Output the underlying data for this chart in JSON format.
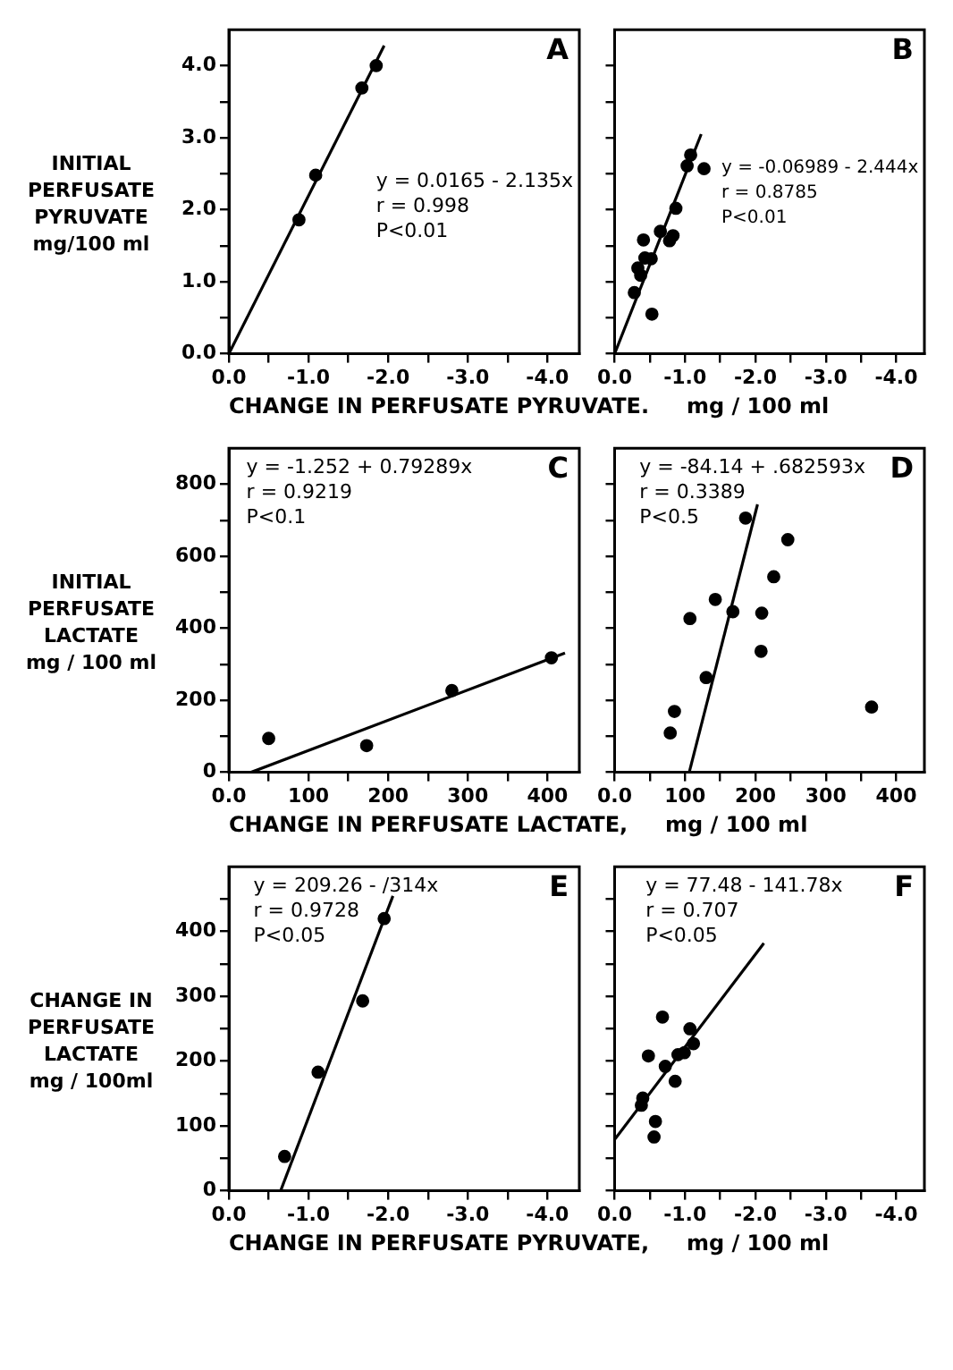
{
  "chart_data": [
    {
      "type": "scatter",
      "ylabel": "INITIAL\nPERFUSATE\nPYRUVATE\nmg/100 ml",
      "xlabel": "CHANGE IN PERFUSATE PYRUVATE.     mg / 100 ml",
      "xlim": [
        0,
        -4.4
      ],
      "ylim": [
        0,
        4.5
      ],
      "xticks": [
        {
          "value": 0,
          "label": "0.0"
        },
        {
          "value": -0.5,
          "label": null
        },
        {
          "value": -1,
          "label": "-1.0"
        },
        {
          "value": -1.5,
          "label": null
        },
        {
          "value": -2,
          "label": "-2.0"
        },
        {
          "value": -2.5,
          "label": null
        },
        {
          "value": -3,
          "label": "-3.0"
        },
        {
          "value": -3.5,
          "label": null
        },
        {
          "value": -4,
          "label": "-4.0"
        }
      ],
      "yticks": [
        {
          "value": 0,
          "label": "0.0"
        },
        {
          "value": 0.5,
          "label": null
        },
        {
          "value": 1,
          "label": "1.0"
        },
        {
          "value": 1.5,
          "label": null
        },
        {
          "value": 2,
          "label": "2.0"
        },
        {
          "value": 2.5,
          "label": null
        },
        {
          "value": 3,
          "label": "3.0"
        },
        {
          "value": 3.5,
          "label": null
        },
        {
          "value": 4,
          "label": "4.0"
        }
      ],
      "marker": "circle",
      "grid": false,
      "legend": false,
      "annotations": [
        "A",
        "y = 0.0165 - 2.135x",
        "r = 0.998",
        "P<0.01"
      ],
      "series": [
        {
          "type": "scatter",
          "color": "#000000",
          "x": [
            -0.88,
            -1.09,
            -1.67,
            -1.85
          ],
          "values": [
            1.86,
            2.48,
            3.69,
            4.0
          ]
        },
        {
          "type": "line",
          "color": "#000000",
          "marker": "none",
          "line_style": "solid",
          "x": [
            0,
            -1.95
          ],
          "values": [
            0,
            4.28
          ]
        }
      ]
    },
    {
      "type": "scatter",
      "tick_labels": "x",
      "xlim": [
        0,
        -4.4
      ],
      "ylim": [
        0,
        4.5
      ],
      "xticks": [
        {
          "value": 0,
          "label": "0.0"
        },
        {
          "value": -0.5,
          "label": null
        },
        {
          "value": -1,
          "label": "-1.0"
        },
        {
          "value": -1.5,
          "label": null
        },
        {
          "value": -2,
          "label": "-2.0"
        },
        {
          "value": -2.5,
          "label": null
        },
        {
          "value": -3,
          "label": "-3.0"
        },
        {
          "value": -3.5,
          "label": null
        },
        {
          "value": -4,
          "label": "-4.0"
        }
      ],
      "yticks": [
        {
          "value": 0,
          "label": null
        },
        {
          "value": 0.5,
          "label": null
        },
        {
          "value": 1,
          "label": null
        },
        {
          "value": 1.5,
          "label": null
        },
        {
          "value": 2,
          "label": null
        },
        {
          "value": 2.5,
          "label": null
        },
        {
          "value": 3,
          "label": null
        },
        {
          "value": 3.5,
          "label": null
        },
        {
          "value": 4,
          "label": null
        }
      ],
      "marker": "circle",
      "grid": false,
      "legend": false,
      "annotations": [
        "B",
        "y = -0.06989 - 2.444x",
        "r = 0.8785",
        "P<0.01"
      ],
      "series": [
        {
          "type": "scatter",
          "color": "#000000",
          "x": [
            -0.28,
            -0.33,
            -0.37,
            -0.41,
            -0.43,
            -0.52,
            -0.53,
            -0.65,
            -0.78,
            -0.83,
            -0.87,
            -1.03,
            -1.08,
            -1.27
          ],
          "values": [
            0.85,
            1.19,
            1.09,
            1.58,
            1.33,
            1.32,
            0.55,
            1.7,
            1.57,
            1.64,
            2.02,
            2.61,
            2.76,
            2.57
          ]
        },
        {
          "type": "line",
          "color": "#000000",
          "marker": "none",
          "line_style": "solid",
          "x": [
            0,
            -1.23
          ],
          "values": [
            0,
            3.05
          ]
        }
      ]
    },
    {
      "type": "scatter",
      "ylabel": "INITIAL\nPERFUSATE\nLACTATE\nmg / 100 ml",
      "xlabel": "CHANGE IN PERFUSATE LACTATE,     mg / 100 ml",
      "xlim": [
        0,
        440
      ],
      "ylim": [
        0,
        900
      ],
      "xticks": [
        {
          "value": 0,
          "label": "0.0"
        },
        {
          "value": 50,
          "label": null
        },
        100,
        {
          "value": 150,
          "label": null
        },
        200,
        {
          "value": 250,
          "label": null
        },
        300,
        {
          "value": 350,
          "label": null
        },
        400
      ],
      "yticks": [
        0,
        {
          "value": 100,
          "label": null
        },
        200,
        {
          "value": 300,
          "label": null
        },
        400,
        {
          "value": 500,
          "label": null
        },
        600,
        {
          "value": 700,
          "label": null
        },
        800
      ],
      "marker": "circle",
      "grid": false,
      "legend": false,
      "annotations": [
        "C",
        "y = -1.252 + 0.79289x",
        "r = 0.9219",
        "P<0.1"
      ],
      "series": [
        {
          "type": "scatter",
          "color": "#000000",
          "x": [
            50,
            173,
            280,
            405
          ],
          "values": [
            94,
            74,
            227,
            318
          ]
        },
        {
          "type": "line",
          "color": "#000000",
          "marker": "none",
          "line_style": "solid",
          "x": [
            28,
            422
          ],
          "values": [
            0,
            331
          ]
        }
      ]
    },
    {
      "type": "scatter",
      "tick_labels": "x",
      "xlim": [
        0,
        440
      ],
      "ylim": [
        0,
        900
      ],
      "xticks": [
        {
          "value": 0,
          "label": "0.0"
        },
        {
          "value": 50,
          "label": null
        },
        100,
        {
          "value": 150,
          "label": null
        },
        200,
        {
          "value": 250,
          "label": null
        },
        300,
        {
          "value": 350,
          "label": null
        },
        400
      ],
      "yticks": [
        {
          "value": 0,
          "label": null
        },
        {
          "value": 100,
          "label": null
        },
        {
          "value": 200,
          "label": null
        },
        {
          "value": 300,
          "label": null
        },
        {
          "value": 400,
          "label": null
        },
        {
          "value": 500,
          "label": null
        },
        {
          "value": 600,
          "label": null
        },
        {
          "value": 700,
          "label": null
        },
        {
          "value": 800,
          "label": null
        }
      ],
      "marker": "circle",
      "grid": false,
      "legend": false,
      "annotations": [
        "D",
        "y = -84.14 + .682593x",
        "r = 0.3389",
        "P<0.5"
      ],
      "series": [
        {
          "type": "scatter",
          "color": "#000000",
          "x": [
            186,
            246,
            226,
            143,
            168,
            209,
            107,
            208,
            130,
            85,
            79,
            365
          ],
          "values": [
            706,
            646,
            543,
            480,
            446,
            442,
            427,
            336,
            263,
            169,
            109,
            181
          ]
        },
        {
          "type": "line",
          "color": "#000000",
          "marker": "none",
          "line_style": "solid",
          "x": [
            106,
            203
          ],
          "values": [
            0,
            744
          ]
        }
      ]
    },
    {
      "type": "scatter",
      "ylabel": "CHANGE IN\nPERFUSATE\nLACTATE\nmg / 100ml",
      "xlabel": "CHANGE IN PERFUSATE PYRUVATE,     mg / 100 ml",
      "xlim": [
        0,
        -4.4
      ],
      "ylim": [
        0,
        500
      ],
      "xticks": [
        {
          "value": 0,
          "label": "0.0"
        },
        {
          "value": -0.5,
          "label": null
        },
        {
          "value": -1,
          "label": "-1.0"
        },
        {
          "value": -1.5,
          "label": null
        },
        {
          "value": -2,
          "label": "-2.0"
        },
        {
          "value": -2.5,
          "label": null
        },
        {
          "value": -3,
          "label": "-3.0"
        },
        {
          "value": -3.5,
          "label": null
        },
        {
          "value": -4,
          "label": "-4.0"
        }
      ],
      "yticks": [
        0,
        {
          "value": 50,
          "label": null
        },
        100,
        {
          "value": 150,
          "label": null
        },
        200,
        {
          "value": 250,
          "label": null
        },
        300,
        {
          "value": 350,
          "label": null
        },
        400,
        {
          "value": 450,
          "label": null
        }
      ],
      "marker": "circle",
      "grid": false,
      "legend": false,
      "annotations": [
        "E",
        "y = 209.26 - /314x",
        "r = 0.9728",
        "P<0.05"
      ],
      "series": [
        {
          "type": "scatter",
          "color": "#000000",
          "x": [
            -0.7,
            -1.12,
            -1.68,
            -1.95
          ],
          "values": [
            53,
            183,
            293,
            420
          ]
        },
        {
          "type": "line",
          "color": "#000000",
          "marker": "none",
          "line_style": "solid",
          "x": [
            -0.65,
            -2.06
          ],
          "values": [
            0,
            455
          ]
        }
      ]
    },
    {
      "type": "scatter",
      "tick_labels": "x",
      "xlim": [
        0,
        -4.4
      ],
      "ylim": [
        0,
        500
      ],
      "xticks": [
        {
          "value": 0,
          "label": "0.0"
        },
        {
          "value": -0.5,
          "label": null
        },
        {
          "value": -1,
          "label": "-1.0"
        },
        {
          "value": -1.5,
          "label": null
        },
        {
          "value": -2,
          "label": "-2.0"
        },
        {
          "value": -2.5,
          "label": null
        },
        {
          "value": -3,
          "label": "-3.0"
        },
        {
          "value": -3.5,
          "label": null
        },
        {
          "value": -4,
          "label": "-4.0"
        }
      ],
      "yticks": [
        {
          "value": 0,
          "label": null
        },
        {
          "value": 50,
          "label": null
        },
        {
          "value": 100,
          "label": null
        },
        {
          "value": 150,
          "label": null
        },
        {
          "value": 200,
          "label": null
        },
        {
          "value": 250,
          "label": null
        },
        {
          "value": 300,
          "label": null
        },
        {
          "value": 350,
          "label": null
        },
        {
          "value": 400,
          "label": null
        },
        {
          "value": 450,
          "label": null
        }
      ],
      "marker": "circle",
      "grid": false,
      "legend": false,
      "annotations": [
        "F",
        "y = 77.48 - 141.78x",
        "r = 0.707",
        "P<0.05"
      ],
      "series": [
        {
          "type": "scatter",
          "color": "#000000",
          "x": [
            -0.68,
            -1.07,
            -1.12,
            -0.48,
            -0.9,
            -0.99,
            -0.72,
            -0.86,
            -0.4,
            -0.38,
            -0.58,
            -0.56
          ],
          "values": [
            268,
            250,
            227,
            208,
            210,
            213,
            192,
            169,
            143,
            132,
            107,
            83
          ]
        },
        {
          "type": "line",
          "color": "#000000",
          "marker": "none",
          "line_style": "solid",
          "x": [
            0,
            -2.12
          ],
          "values": [
            79,
            382
          ]
        }
      ]
    }
  ]
}
